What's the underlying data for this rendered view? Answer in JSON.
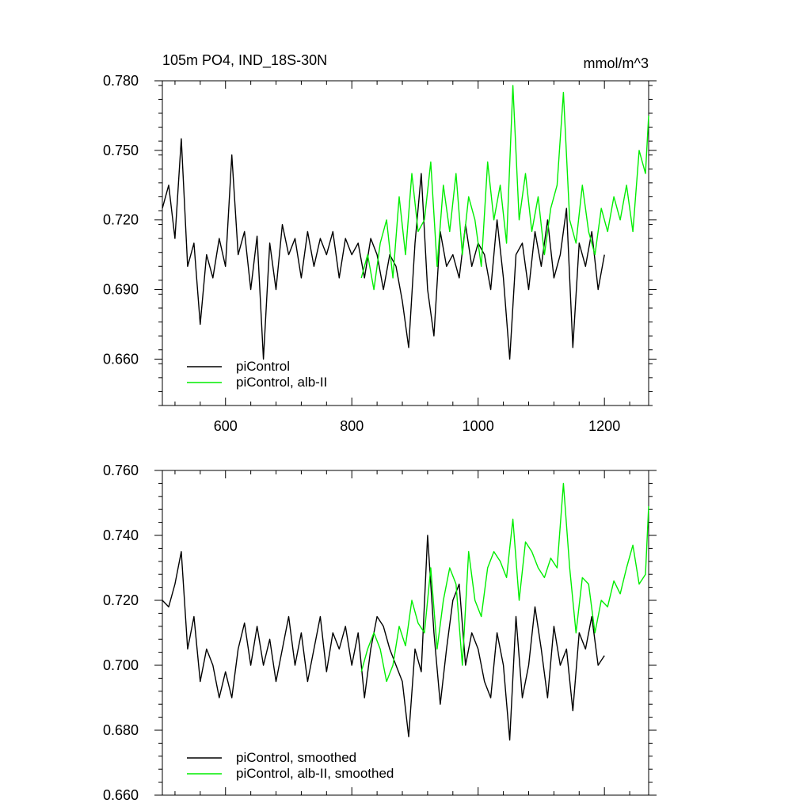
{
  "chart_data": [
    {
      "type": "line",
      "title": "105m PO4, IND_18S-30N",
      "units": "mmol/m^3",
      "xlim": [
        500,
        1270
      ],
      "ylim": [
        0.64,
        0.78
      ],
      "xticks": [
        600,
        800,
        1000,
        1200
      ],
      "xtick_labels": [
        "600",
        "800",
        "1000",
        "1200"
      ],
      "yticks": [
        0.66,
        0.69,
        0.72,
        0.75,
        0.78
      ],
      "ytick_labels": [
        "0.660",
        "0.690",
        "0.720",
        "0.750",
        "0.780"
      ],
      "grid": false,
      "legend": "bottom-left",
      "series": [
        {
          "name": "piControl",
          "color": "#000000",
          "x": [
            500,
            510,
            520,
            530,
            540,
            550,
            560,
            570,
            580,
            590,
            600,
            610,
            620,
            630,
            640,
            650,
            660,
            670,
            680,
            690,
            700,
            710,
            720,
            730,
            740,
            750,
            760,
            770,
            780,
            790,
            800,
            810,
            820,
            830,
            840,
            850,
            860,
            870,
            880,
            890,
            900,
            910,
            920,
            930,
            940,
            950,
            960,
            970,
            980,
            990,
            1000,
            1010,
            1020,
            1030,
            1040,
            1050,
            1060,
            1070,
            1080,
            1090,
            1100,
            1110,
            1120,
            1130,
            1140,
            1150,
            1160,
            1170,
            1180,
            1190,
            1200
          ],
          "y": [
            0.725,
            0.735,
            0.712,
            0.755,
            0.7,
            0.71,
            0.675,
            0.705,
            0.695,
            0.712,
            0.7,
            0.748,
            0.705,
            0.715,
            0.69,
            0.713,
            0.66,
            0.71,
            0.69,
            0.718,
            0.705,
            0.712,
            0.695,
            0.715,
            0.7,
            0.712,
            0.705,
            0.715,
            0.695,
            0.712,
            0.705,
            0.71,
            0.695,
            0.712,
            0.705,
            0.69,
            0.705,
            0.7,
            0.685,
            0.665,
            0.71,
            0.74,
            0.69,
            0.67,
            0.715,
            0.7,
            0.705,
            0.695,
            0.718,
            0.7,
            0.71,
            0.705,
            0.69,
            0.72,
            0.695,
            0.66,
            0.705,
            0.71,
            0.69,
            0.715,
            0.7,
            0.72,
            0.695,
            0.705,
            0.725,
            0.665,
            0.71,
            0.7,
            0.715,
            0.69,
            0.705
          ]
        },
        {
          "name": "piControl, alb-II",
          "color": "#00ee00",
          "x": [
            815,
            825,
            835,
            845,
            855,
            865,
            875,
            885,
            895,
            905,
            915,
            925,
            935,
            945,
            955,
            965,
            975,
            985,
            995,
            1005,
            1015,
            1025,
            1035,
            1045,
            1055,
            1065,
            1075,
            1085,
            1095,
            1105,
            1115,
            1125,
            1135,
            1145,
            1155,
            1165,
            1175,
            1185,
            1195,
            1205,
            1215,
            1225,
            1235,
            1245,
            1255,
            1265,
            1270
          ],
          "y": [
            0.695,
            0.705,
            0.69,
            0.71,
            0.72,
            0.695,
            0.73,
            0.705,
            0.74,
            0.715,
            0.72,
            0.745,
            0.7,
            0.735,
            0.715,
            0.74,
            0.705,
            0.73,
            0.72,
            0.7,
            0.745,
            0.72,
            0.735,
            0.71,
            0.778,
            0.72,
            0.74,
            0.715,
            0.73,
            0.705,
            0.725,
            0.735,
            0.775,
            0.72,
            0.71,
            0.735,
            0.715,
            0.705,
            0.725,
            0.715,
            0.73,
            0.72,
            0.735,
            0.715,
            0.75,
            0.74,
            0.765
          ]
        }
      ]
    },
    {
      "type": "line",
      "title": "",
      "xlim": [
        500,
        1270
      ],
      "ylim": [
        0.66,
        0.76
      ],
      "xticks": [
        600,
        800,
        1000,
        1200
      ],
      "yticks": [
        0.66,
        0.68,
        0.7,
        0.72,
        0.74,
        0.76
      ],
      "ytick_labels": [
        "0.660",
        "0.680",
        "0.700",
        "0.720",
        "0.740",
        "0.760"
      ],
      "grid": false,
      "legend": "bottom-left",
      "series": [
        {
          "name": "piControl, smoothed",
          "color": "#000000",
          "x": [
            500,
            510,
            520,
            530,
            540,
            550,
            560,
            570,
            580,
            590,
            600,
            610,
            620,
            630,
            640,
            650,
            660,
            670,
            680,
            690,
            700,
            710,
            720,
            730,
            740,
            750,
            760,
            770,
            780,
            790,
            800,
            810,
            820,
            830,
            840,
            850,
            860,
            870,
            880,
            890,
            900,
            910,
            920,
            930,
            940,
            950,
            960,
            970,
            980,
            990,
            1000,
            1010,
            1020,
            1030,
            1040,
            1050,
            1060,
            1070,
            1080,
            1090,
            1100,
            1110,
            1120,
            1130,
            1140,
            1150,
            1160,
            1170,
            1180,
            1190,
            1200
          ],
          "y": [
            0.72,
            0.718,
            0.725,
            0.735,
            0.705,
            0.715,
            0.695,
            0.705,
            0.7,
            0.69,
            0.698,
            0.69,
            0.705,
            0.713,
            0.7,
            0.712,
            0.7,
            0.708,
            0.695,
            0.705,
            0.715,
            0.7,
            0.71,
            0.695,
            0.705,
            0.715,
            0.698,
            0.71,
            0.705,
            0.712,
            0.7,
            0.71,
            0.69,
            0.705,
            0.715,
            0.712,
            0.705,
            0.7,
            0.695,
            0.678,
            0.705,
            0.698,
            0.74,
            0.71,
            0.688,
            0.705,
            0.72,
            0.725,
            0.7,
            0.71,
            0.705,
            0.695,
            0.69,
            0.71,
            0.7,
            0.677,
            0.715,
            0.69,
            0.7,
            0.718,
            0.705,
            0.69,
            0.712,
            0.7,
            0.705,
            0.686,
            0.71,
            0.705,
            0.715,
            0.7,
            0.703
          ]
        },
        {
          "name": "piControl, alb-II, smoothed",
          "color": "#00ee00",
          "x": [
            815,
            825,
            835,
            845,
            855,
            865,
            875,
            885,
            895,
            905,
            915,
            925,
            935,
            945,
            955,
            965,
            975,
            985,
            995,
            1005,
            1015,
            1025,
            1035,
            1045,
            1055,
            1065,
            1075,
            1085,
            1095,
            1105,
            1115,
            1125,
            1135,
            1145,
            1155,
            1165,
            1175,
            1185,
            1195,
            1205,
            1215,
            1225,
            1235,
            1245,
            1255,
            1265,
            1270
          ],
          "y": [
            0.698,
            0.705,
            0.71,
            0.705,
            0.695,
            0.7,
            0.712,
            0.706,
            0.72,
            0.713,
            0.71,
            0.73,
            0.705,
            0.72,
            0.73,
            0.725,
            0.7,
            0.735,
            0.72,
            0.715,
            0.73,
            0.735,
            0.732,
            0.727,
            0.745,
            0.72,
            0.738,
            0.735,
            0.73,
            0.727,
            0.733,
            0.73,
            0.756,
            0.73,
            0.71,
            0.727,
            0.725,
            0.71,
            0.72,
            0.718,
            0.726,
            0.722,
            0.73,
            0.737,
            0.725,
            0.728,
            0.749
          ]
        }
      ]
    }
  ]
}
